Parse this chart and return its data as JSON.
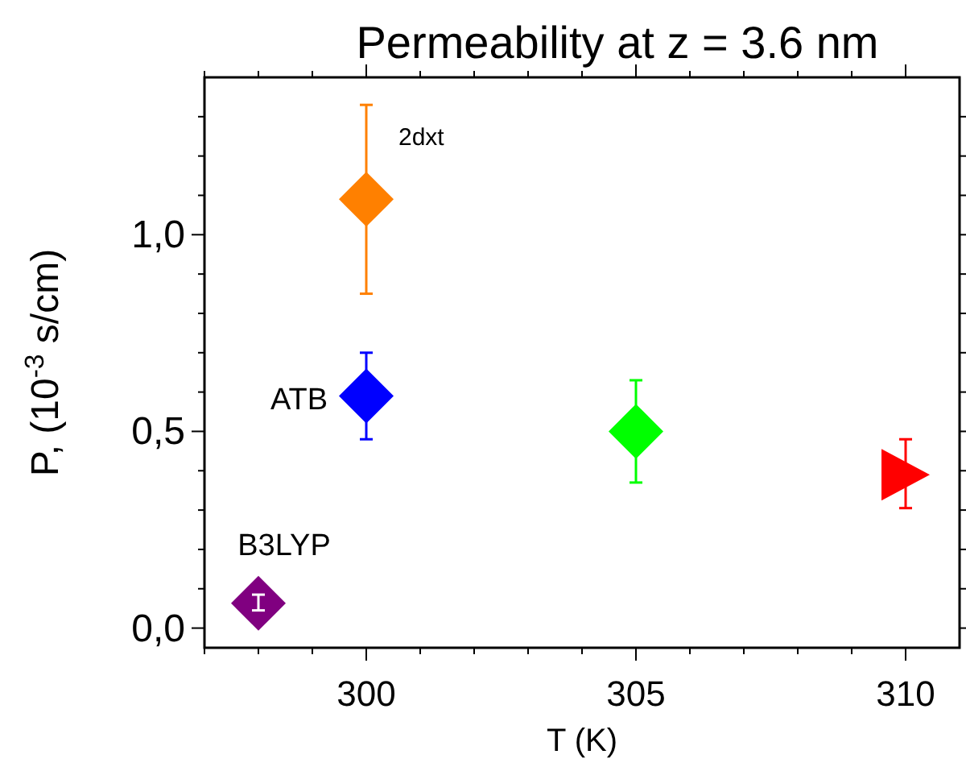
{
  "chart_data": {
    "type": "scatter",
    "title": "Permeability at z = 3.6 nm",
    "xlabel": "T (K)",
    "ylabel": "P, (10$^{-3}$ s/cm)",
    "xlim": [
      297,
      311
    ],
    "ylim": [
      -0.05,
      1.4
    ],
    "xticks": [
      {
        "value": 297,
        "label": null
      },
      {
        "value": 298,
        "label": null
      },
      {
        "value": 299,
        "label": null
      },
      300,
      {
        "value": 301,
        "label": null
      },
      {
        "value": 302,
        "label": null
      },
      {
        "value": 303,
        "label": null
      },
      {
        "value": 304,
        "label": null
      },
      305,
      {
        "value": 306,
        "label": null
      },
      {
        "value": 307,
        "label": null
      },
      {
        "value": 308,
        "label": null
      },
      {
        "value": 309,
        "label": null
      },
      310
    ],
    "yticks": [
      {
        "value": 0,
        "label": "0,0"
      },
      {
        "value": 0.1,
        "label": null
      },
      {
        "value": 0.2,
        "label": null
      },
      {
        "value": 0.3,
        "label": null
      },
      {
        "value": 0.4,
        "label": null
      },
      {
        "value": 0.5,
        "label": "0,5"
      },
      {
        "value": 0.6,
        "label": null
      },
      {
        "value": 0.7,
        "label": null
      },
      {
        "value": 0.8,
        "label": null
      },
      {
        "value": 0.9,
        "label": null
      },
      {
        "value": 1.0,
        "label": "1,0"
      },
      {
        "value": 1.1,
        "label": null
      },
      {
        "value": 1.2,
        "label": null
      },
      {
        "value": 1.3,
        "label": null
      }
    ],
    "grid": false,
    "series": [
      {
        "name": "2dxt",
        "color": "#ff8000",
        "x": [
          300
        ],
        "values": [
          1.09
        ],
        "errors": [
          [
            0.85,
            1.33
          ]
        ],
        "marker": "diamond"
      },
      {
        "name": "ATB",
        "color": "#0000ff",
        "x": [
          300
        ],
        "values": [
          0.59
        ],
        "errors": [
          [
            0.48,
            0.7
          ]
        ],
        "marker": "diamond"
      },
      {
        "color": "#00ff00",
        "x": [
          305
        ],
        "values": [
          0.5
        ],
        "errors": [
          [
            0.37,
            0.63
          ]
        ],
        "marker": "diamond"
      },
      {
        "color": "#ff0000",
        "x": [
          310
        ],
        "values": [
          0.39
        ],
        "errors": [
          [
            0.305,
            0.48
          ]
        ],
        "marker": "triangle"
      },
      {
        "name": "B3LYP",
        "color": "#800080",
        "x": [
          298
        ],
        "values": [
          0.063
        ],
        "errors": [
          [
            0.045,
            0.085
          ]
        ],
        "marker": "diamond"
      }
    ]
  }
}
